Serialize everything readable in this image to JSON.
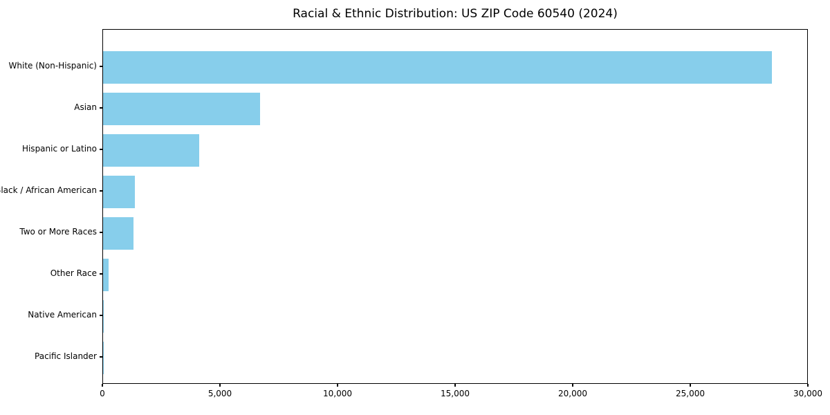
{
  "chart_data": {
    "type": "bar",
    "orientation": "horizontal",
    "title": "Racial & Ethnic Distribution: US ZIP Code 60540 (2024)",
    "categories": [
      "White (Non-Hispanic)",
      "Asian",
      "Hispanic or Latino",
      "Black / African American",
      "Two or More Races",
      "Other Race",
      "Native American",
      "Pacific Islander"
    ],
    "values": [
      28500,
      6700,
      4100,
      1350,
      1300,
      250,
      30,
      10
    ],
    "xlabel": "",
    "ylabel": "",
    "xlim": [
      0,
      30000
    ],
    "xticks": [
      0,
      5000,
      10000,
      15000,
      20000,
      25000,
      30000
    ],
    "xtick_labels": [
      "0",
      "5,000",
      "10,000",
      "15,000",
      "20,000",
      "25,000",
      "30,000"
    ],
    "bar_color": "#87CEEB",
    "grid": false,
    "legend": "none"
  }
}
